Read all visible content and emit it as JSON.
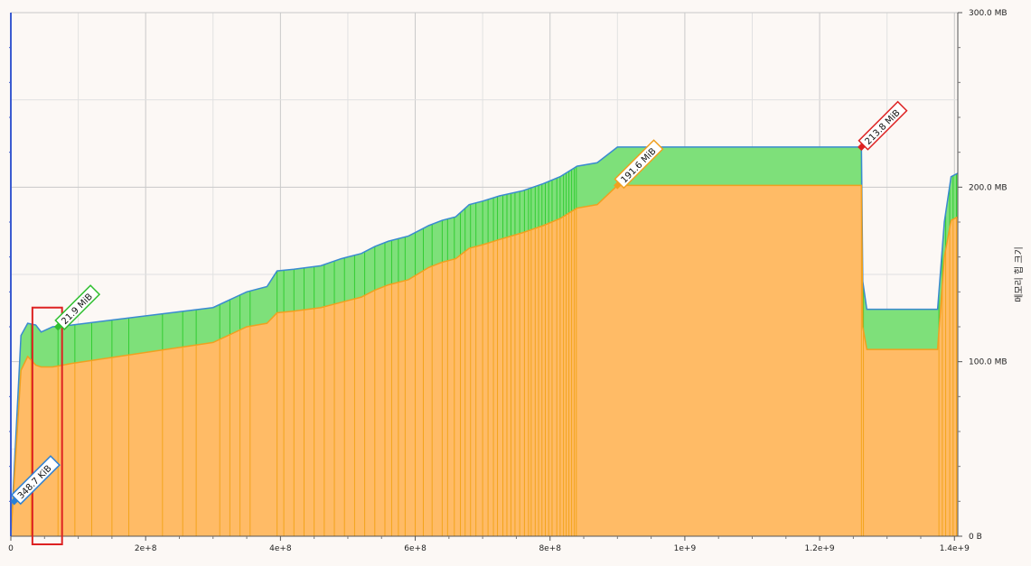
{
  "chart_data": {
    "type": "area",
    "x_axis": {
      "ticks": [
        {
          "value": 0,
          "label": "0"
        },
        {
          "value": 200000000,
          "label": "2e+8"
        },
        {
          "value": 400000000,
          "label": "4e+8"
        },
        {
          "value": 600000000,
          "label": "6e+8"
        },
        {
          "value": 800000000,
          "label": "8e+8"
        },
        {
          "value": 1000000000,
          "label": "1e+9"
        },
        {
          "value": 1200000000,
          "label": "1.2e+9"
        },
        {
          "value": 1400000000,
          "label": "1.4e+9"
        }
      ],
      "range": [
        0,
        1405000000
      ]
    },
    "y_axis": {
      "label": "메모리 힙 크기",
      "ticks": [
        {
          "value": 0,
          "label": "0 B"
        },
        {
          "value": 100,
          "label": "100.0 MB"
        },
        {
          "value": 200,
          "label": "200.0 MB"
        },
        {
          "value": 300,
          "label": "300.0 MB"
        }
      ],
      "range": [
        0,
        300
      ],
      "unit": "MB",
      "position": "right"
    },
    "grid": true,
    "series": [
      {
        "color": "#7ee07a",
        "line_color": "#3a8ad0",
        "points": [
          [
            0,
            0
          ],
          [
            15000000,
            115
          ],
          [
            25000000,
            122
          ],
          [
            37000000,
            121
          ],
          [
            45000000,
            117
          ],
          [
            62000000,
            120
          ],
          [
            90000000,
            121
          ],
          [
            300000000,
            131
          ],
          [
            350000000,
            140
          ],
          [
            380000000,
            143
          ],
          [
            395000000,
            152
          ],
          [
            420000000,
            153
          ],
          [
            460000000,
            155
          ],
          [
            490000000,
            159
          ],
          [
            520000000,
            162
          ],
          [
            540000000,
            166
          ],
          [
            560000000,
            169
          ],
          [
            590000000,
            172
          ],
          [
            620000000,
            178
          ],
          [
            640000000,
            181
          ],
          [
            660000000,
            183
          ],
          [
            680000000,
            190
          ],
          [
            700000000,
            192
          ],
          [
            725000000,
            195
          ],
          [
            760000000,
            198
          ],
          [
            790000000,
            202
          ],
          [
            815000000,
            206
          ],
          [
            840000000,
            212
          ],
          [
            870000000,
            214
          ],
          [
            900000000,
            223
          ],
          [
            1262000000,
            223
          ],
          [
            1264000000,
            146
          ],
          [
            1270000000,
            130
          ],
          [
            1375000000,
            130
          ],
          [
            1385000000,
            180
          ],
          [
            1395000000,
            206
          ],
          [
            1405000000,
            208
          ]
        ]
      },
      {
        "color": "#ffbb66",
        "line_color": "#f0a020",
        "points": [
          [
            0,
            0
          ],
          [
            15000000,
            95
          ],
          [
            25000000,
            103
          ],
          [
            37000000,
            98
          ],
          [
            45000000,
            97
          ],
          [
            62000000,
            97
          ],
          [
            90000000,
            99
          ],
          [
            300000000,
            111
          ],
          [
            350000000,
            120
          ],
          [
            380000000,
            122
          ],
          [
            395000000,
            128
          ],
          [
            420000000,
            129
          ],
          [
            460000000,
            131
          ],
          [
            490000000,
            134
          ],
          [
            520000000,
            137
          ],
          [
            540000000,
            141
          ],
          [
            560000000,
            144
          ],
          [
            590000000,
            147
          ],
          [
            620000000,
            154
          ],
          [
            640000000,
            157
          ],
          [
            660000000,
            159
          ],
          [
            680000000,
            165
          ],
          [
            700000000,
            167
          ],
          [
            725000000,
            170
          ],
          [
            760000000,
            174
          ],
          [
            790000000,
            178
          ],
          [
            815000000,
            182
          ],
          [
            840000000,
            188
          ],
          [
            870000000,
            190
          ],
          [
            900000000,
            201
          ],
          [
            1262000000,
            201
          ],
          [
            1264000000,
            120
          ],
          [
            1270000000,
            107
          ],
          [
            1375000000,
            107
          ],
          [
            1385000000,
            160
          ],
          [
            1395000000,
            181
          ],
          [
            1405000000,
            183
          ]
        ]
      }
    ],
    "vertical_lines_x": [
      30000000,
      70000000,
      95000000,
      120000000,
      150000000,
      175000000,
      225000000,
      255000000,
      275000000,
      310000000,
      325000000,
      340000000,
      355000000,
      395000000,
      405000000,
      420000000,
      435000000,
      450000000,
      465000000,
      480000000,
      495000000,
      510000000,
      525000000,
      540000000,
      555000000,
      565000000,
      575000000,
      585000000,
      600000000,
      612000000,
      625000000,
      640000000,
      648000000,
      658000000,
      667000000,
      674000000,
      682000000,
      690000000,
      700000000,
      708000000,
      716000000,
      722000000,
      730000000,
      736000000,
      742000000,
      748000000,
      755000000,
      762000000,
      768000000,
      772000000,
      778000000,
      783000000,
      788000000,
      793000000,
      798000000,
      803000000,
      810000000,
      815000000,
      820000000,
      824000000,
      828000000,
      832000000,
      836000000,
      839000000,
      1262000000,
      1265000000,
      1377000000,
      1382000000,
      1387000000,
      1393000000,
      1398000000,
      1403000000
    ],
    "callouts": [
      {
        "x": 5000000,
        "y": 20,
        "text": "348.7 KiB",
        "color": "#2a7fd4"
      },
      {
        "x": 70000000,
        "y": 120,
        "text": "21.9 MiB",
        "color": "#2fbf2f"
      },
      {
        "x": 900000000,
        "y": 201,
        "text": "191.6 MiB",
        "color": "#f0a020"
      },
      {
        "x": 1262000000,
        "y": 223,
        "text": "213.8 MiB",
        "color": "#dd2222"
      }
    ],
    "highlight": {
      "x_range": [
        32000000,
        76000000
      ],
      "color": "#dd2222"
    }
  }
}
